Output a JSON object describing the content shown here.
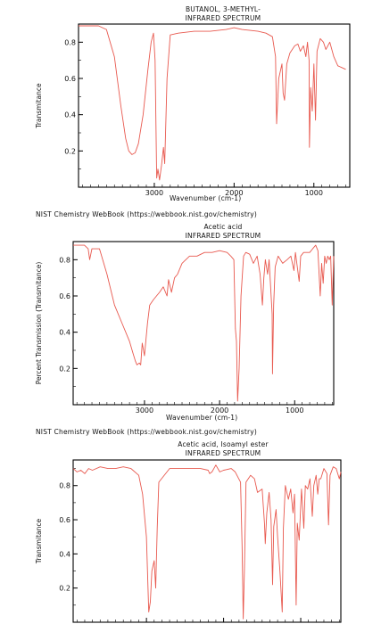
{
  "chart_data": [
    {
      "type": "line",
      "title": "BUTANOL, 3-METHYL-",
      "subtitle": "INFRARED SPECTRUM",
      "xlabel": "Wavenumber (cm-1)",
      "ylabel": "Transmitance",
      "xlim": [
        3950,
        550
      ],
      "ylim": [
        0.0,
        0.9
      ],
      "x_ticks": [
        3000,
        2000,
        1000
      ],
      "y_ticks": [
        0.2,
        0.4,
        0.6,
        0.8
      ],
      "series": [
        {
          "values": [
            [
              3950,
              0.89
            ],
            [
              3700,
              0.89
            ],
            [
              3600,
              0.87
            ],
            [
              3500,
              0.72
            ],
            [
              3420,
              0.45
            ],
            [
              3360,
              0.27
            ],
            [
              3320,
              0.2
            ],
            [
              3280,
              0.18
            ],
            [
              3240,
              0.19
            ],
            [
              3200,
              0.24
            ],
            [
              3140,
              0.4
            ],
            [
              3080,
              0.65
            ],
            [
              3040,
              0.8
            ],
            [
              3010,
              0.85
            ],
            [
              2990,
              0.7
            ],
            [
              2970,
              0.05
            ],
            [
              2955,
              0.1
            ],
            [
              2935,
              0.04
            ],
            [
              2910,
              0.12
            ],
            [
              2885,
              0.22
            ],
            [
              2870,
              0.13
            ],
            [
              2840,
              0.6
            ],
            [
              2800,
              0.84
            ],
            [
              2700,
              0.85
            ],
            [
              2500,
              0.86
            ],
            [
              2300,
              0.86
            ],
            [
              2100,
              0.87
            ],
            [
              2000,
              0.88
            ],
            [
              1900,
              0.87
            ],
            [
              1700,
              0.86
            ],
            [
              1600,
              0.85
            ],
            [
              1520,
              0.83
            ],
            [
              1480,
              0.72
            ],
            [
              1467,
              0.35
            ],
            [
              1440,
              0.6
            ],
            [
              1400,
              0.68
            ],
            [
              1385,
              0.52
            ],
            [
              1368,
              0.48
            ],
            [
              1340,
              0.68
            ],
            [
              1300,
              0.74
            ],
            [
              1240,
              0.78
            ],
            [
              1200,
              0.79
            ],
            [
              1170,
              0.75
            ],
            [
              1130,
              0.78
            ],
            [
              1100,
              0.72
            ],
            [
              1080,
              0.8
            ],
            [
              1060,
              0.7
            ],
            [
              1055,
              0.22
            ],
            [
              1040,
              0.55
            ],
            [
              1020,
              0.42
            ],
            [
              1000,
              0.68
            ],
            [
              980,
              0.37
            ],
            [
              960,
              0.75
            ],
            [
              920,
              0.82
            ],
            [
              880,
              0.8
            ],
            [
              850,
              0.76
            ],
            [
              800,
              0.8
            ],
            [
              750,
              0.72
            ],
            [
              700,
              0.67
            ],
            [
              650,
              0.66
            ],
            [
              600,
              0.65
            ]
          ]
        }
      ]
    },
    {
      "type": "line",
      "title": "Acetic acid",
      "subtitle": "INFRARED SPECTRUM",
      "source": "NIST Chemistry WebBook (https://webbook.nist.gov/chemistry)",
      "xlabel": "Wavenumber (cm-1)",
      "ylabel": "Percent Transmission (Transmitance)",
      "xlim": [
        3950,
        480
      ],
      "ylim": [
        0.0,
        0.9
      ],
      "x_ticks": [
        3000,
        2000,
        1000
      ],
      "y_ticks": [
        0.2,
        0.4,
        0.6,
        0.8
      ],
      "series": [
        {
          "values": [
            [
              3950,
              0.88
            ],
            [
              3800,
              0.88
            ],
            [
              3750,
              0.86
            ],
            [
              3730,
              0.8
            ],
            [
              3700,
              0.86
            ],
            [
              3600,
              0.86
            ],
            [
              3500,
              0.72
            ],
            [
              3400,
              0.55
            ],
            [
              3300,
              0.45
            ],
            [
              3200,
              0.35
            ],
            [
              3150,
              0.28
            ],
            [
              3120,
              0.24
            ],
            [
              3100,
              0.22
            ],
            [
              3070,
              0.23
            ],
            [
              3050,
              0.22
            ],
            [
              3030,
              0.34
            ],
            [
              3000,
              0.27
            ],
            [
              2960,
              0.45
            ],
            [
              2930,
              0.55
            ],
            [
              2880,
              0.58
            ],
            [
              2800,
              0.62
            ],
            [
              2750,
              0.65
            ],
            [
              2700,
              0.6
            ],
            [
              2680,
              0.69
            ],
            [
              2640,
              0.62
            ],
            [
              2600,
              0.7
            ],
            [
              2560,
              0.72
            ],
            [
              2500,
              0.78
            ],
            [
              2400,
              0.82
            ],
            [
              2300,
              0.82
            ],
            [
              2200,
              0.84
            ],
            [
              2100,
              0.84
            ],
            [
              2000,
              0.85
            ],
            [
              1900,
              0.84
            ],
            [
              1850,
              0.82
            ],
            [
              1810,
              0.8
            ],
            [
              1790,
              0.42
            ],
            [
              1775,
              0.35
            ],
            [
              1760,
              0.02
            ],
            [
              1740,
              0.2
            ],
            [
              1715,
              0.6
            ],
            [
              1680,
              0.82
            ],
            [
              1650,
              0.84
            ],
            [
              1600,
              0.83
            ],
            [
              1550,
              0.78
            ],
            [
              1500,
              0.82
            ],
            [
              1460,
              0.72
            ],
            [
              1430,
              0.55
            ],
            [
              1410,
              0.7
            ],
            [
              1390,
              0.8
            ],
            [
              1360,
              0.72
            ],
            [
              1340,
              0.8
            ],
            [
              1300,
              0.5
            ],
            [
              1295,
              0.17
            ],
            [
              1280,
              0.55
            ],
            [
              1260,
              0.76
            ],
            [
              1220,
              0.82
            ],
            [
              1160,
              0.78
            ],
            [
              1100,
              0.8
            ],
            [
              1050,
              0.82
            ],
            [
              1010,
              0.74
            ],
            [
              990,
              0.84
            ],
            [
              940,
              0.68
            ],
            [
              920,
              0.82
            ],
            [
              880,
              0.84
            ],
            [
              850,
              0.84
            ],
            [
              800,
              0.84
            ],
            [
              760,
              0.86
            ],
            [
              720,
              0.88
            ],
            [
              690,
              0.85
            ],
            [
              660,
              0.6
            ],
            [
              640,
              0.78
            ],
            [
              620,
              0.67
            ],
            [
              600,
              0.82
            ],
            [
              580,
              0.78
            ],
            [
              560,
              0.82
            ],
            [
              540,
              0.8
            ],
            [
              520,
              0.82
            ],
            [
              500,
              0.55
            ],
            [
              480,
              0.82
            ]
          ]
        }
      ]
    },
    {
      "type": "line",
      "title": "Acetic acid, Isoamyl ester",
      "subtitle": "INFRARED SPECTRUM",
      "source": "NIST Chemistry WebBook (https://webbook.nist.gov/chemistry)",
      "xlabel": "",
      "ylabel": "Transmitance",
      "xlim": [
        3950,
        480
      ],
      "ylim": [
        0.0,
        0.95
      ],
      "x_ticks": [],
      "y_ticks": [
        0.2,
        0.4,
        0.6,
        0.8
      ],
      "series": [
        {
          "values": [
            [
              3950,
              0.9
            ],
            [
              3900,
              0.88
            ],
            [
              3850,
              0.89
            ],
            [
              3800,
              0.87
            ],
            [
              3750,
              0.9
            ],
            [
              3700,
              0.89
            ],
            [
              3600,
              0.91
            ],
            [
              3500,
              0.9
            ],
            [
              3400,
              0.9
            ],
            [
              3300,
              0.91
            ],
            [
              3200,
              0.9
            ],
            [
              3100,
              0.86
            ],
            [
              3050,
              0.75
            ],
            [
              3000,
              0.5
            ],
            [
              2970,
              0.06
            ],
            [
              2950,
              0.12
            ],
            [
              2930,
              0.3
            ],
            [
              2900,
              0.36
            ],
            [
              2880,
              0.2
            ],
            [
              2860,
              0.55
            ],
            [
              2840,
              0.82
            ],
            [
              2700,
              0.9
            ],
            [
              2500,
              0.9
            ],
            [
              2300,
              0.9
            ],
            [
              2200,
              0.89
            ],
            [
              2180,
              0.87
            ],
            [
              2150,
              0.88
            ],
            [
              2100,
              0.92
            ],
            [
              2050,
              0.88
            ],
            [
              2000,
              0.89
            ],
            [
              1900,
              0.9
            ],
            [
              1850,
              0.88
            ],
            [
              1780,
              0.82
            ],
            [
              1760,
              0.45
            ],
            [
              1745,
              0.02
            ],
            [
              1730,
              0.3
            ],
            [
              1710,
              0.82
            ],
            [
              1650,
              0.86
            ],
            [
              1600,
              0.84
            ],
            [
              1560,
              0.76
            ],
            [
              1500,
              0.78
            ],
            [
              1470,
              0.58
            ],
            [
              1460,
              0.46
            ],
            [
              1440,
              0.64
            ],
            [
              1410,
              0.76
            ],
            [
              1385,
              0.6
            ],
            [
              1365,
              0.22
            ],
            [
              1350,
              0.56
            ],
            [
              1320,
              0.66
            ],
            [
              1300,
              0.5
            ],
            [
              1270,
              0.3
            ],
            [
              1240,
              0.06
            ],
            [
              1225,
              0.55
            ],
            [
              1200,
              0.8
            ],
            [
              1160,
              0.72
            ],
            [
              1130,
              0.78
            ],
            [
              1100,
              0.64
            ],
            [
              1080,
              0.75
            ],
            [
              1060,
              0.1
            ],
            [
              1045,
              0.58
            ],
            [
              1020,
              0.48
            ],
            [
              990,
              0.78
            ],
            [
              960,
              0.55
            ],
            [
              940,
              0.8
            ],
            [
              910,
              0.78
            ],
            [
              880,
              0.84
            ],
            [
              850,
              0.62
            ],
            [
              830,
              0.8
            ],
            [
              800,
              0.86
            ],
            [
              780,
              0.75
            ],
            [
              760,
              0.84
            ],
            [
              740,
              0.84
            ],
            [
              700,
              0.9
            ],
            [
              660,
              0.87
            ],
            [
              640,
              0.57
            ],
            [
              620,
              0.86
            ],
            [
              580,
              0.91
            ],
            [
              540,
              0.9
            ],
            [
              500,
              0.84
            ],
            [
              480,
              0.88
            ]
          ]
        }
      ]
    }
  ],
  "colors": {
    "line": "#e8594f",
    "axis": "#000000"
  }
}
